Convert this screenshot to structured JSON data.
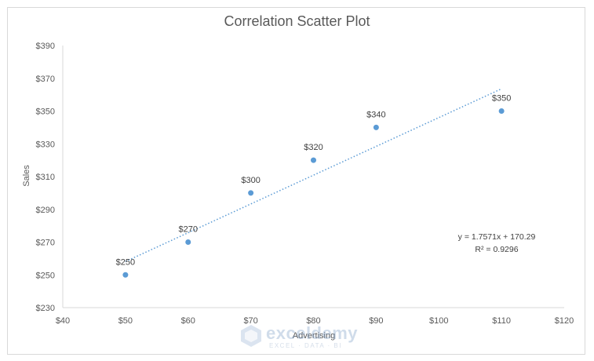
{
  "chart_data": {
    "type": "scatter",
    "title": "Correlation Scatter Plot",
    "xlabel": "Advertising",
    "ylabel": "Sales",
    "xlim": [
      40,
      120
    ],
    "ylim": [
      230,
      390
    ],
    "x_ticks": [
      "$40",
      "$50",
      "$60",
      "$70",
      "$80",
      "$90",
      "$100",
      "$110",
      "$120"
    ],
    "y_ticks": [
      "$230",
      "$250",
      "$270",
      "$290",
      "$310",
      "$330",
      "$350",
      "$370",
      "$390"
    ],
    "points": [
      {
        "x": 50,
        "y": 250,
        "label": "$250"
      },
      {
        "x": 60,
        "y": 270,
        "label": "$270"
      },
      {
        "x": 70,
        "y": 300,
        "label": "$300"
      },
      {
        "x": 80,
        "y": 320,
        "label": "$320"
      },
      {
        "x": 90,
        "y": 340,
        "label": "$340"
      },
      {
        "x": 110,
        "y": 350,
        "label": "$350"
      }
    ],
    "trendline": {
      "type": "linear",
      "slope": 1.7571,
      "intercept": 170.29,
      "equation": "y = 1.7571x + 170.29",
      "r_squared": "R² = 0.9296"
    },
    "grid": false,
    "legend": "none",
    "marker_color": "#5b9bd5",
    "trendline_color": "#5b9bd5"
  },
  "watermark": {
    "name": "exceldemy",
    "tagline": "EXCEL · DATA · BI"
  }
}
